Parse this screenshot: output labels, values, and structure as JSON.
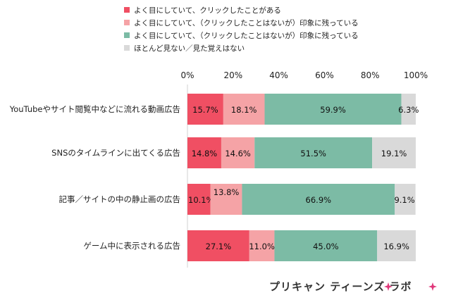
{
  "chart_data": {
    "type": "bar",
    "orientation": "horizontal",
    "stacked": true,
    "categories": [
      "YouTubeやサイト閲覧中などに流れる動画広告",
      "SNSのタイムラインに出てくる広告",
      "記事／サイトの中の静止画の広告",
      "ゲーム中に表示される広告"
    ],
    "series": [
      {
        "name": "よく目にしていて、クリックしたことがある",
        "color": "#f04f63",
        "values": [
          15.7,
          14.8,
          10.1,
          27.1
        ]
      },
      {
        "name": "よく目にしていて、（クリックしたことはないが）印象に残っている",
        "color": "#f5a3a6",
        "values": [
          18.1,
          14.6,
          13.8,
          11.0
        ]
      },
      {
        "name": "よく目にしていて、（クリックしたことはないが）印象に残っている",
        "color": "#7cbba5",
        "values": [
          59.9,
          51.5,
          66.9,
          45.0
        ]
      },
      {
        "name": "ほとんど見ない／見た覚えはない",
        "color": "#d9d9d9",
        "values": [
          6.3,
          19.1,
          9.1,
          16.9
        ]
      }
    ],
    "value_unit": "%",
    "xlim": [
      0,
      100
    ],
    "xticks": [
      0,
      20,
      40,
      60,
      80,
      100
    ],
    "grid": false,
    "legend_position": "top",
    "title": "",
    "xlabel": "",
    "ylabel": ""
  },
  "logo": {
    "text": "プリキャン ティーンズ ラボ"
  }
}
